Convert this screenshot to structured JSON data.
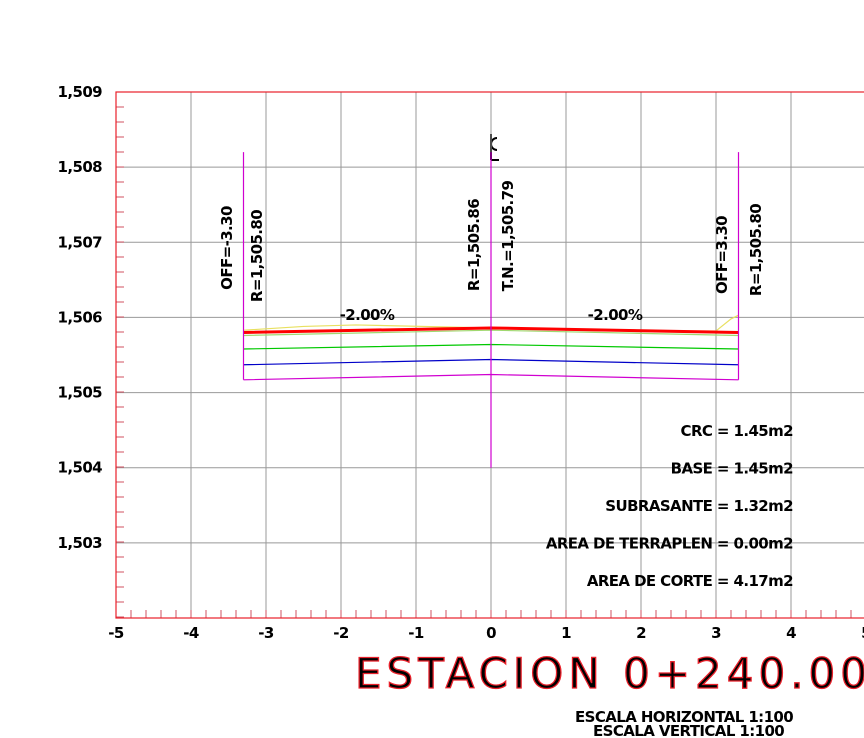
{
  "chart_data": {
    "type": "line",
    "title": "ESTACION 0+240.00",
    "subtitle": [
      "ESCALA HORIZONTAL 1:100",
      "ESCALA VERTICAL 1:100"
    ],
    "xlim": [
      -5,
      5
    ],
    "ylim": [
      1502,
      1509
    ],
    "xticks": [
      -5,
      -4,
      -3,
      -2,
      -1,
      0,
      1,
      2,
      3,
      4,
      5
    ],
    "yticks": [
      {
        "value": 1503,
        "label": "1,503"
      },
      {
        "value": 1504,
        "label": "1,504"
      },
      {
        "value": 1505,
        "label": "1,505"
      },
      {
        "value": 1506,
        "label": "1,506"
      },
      {
        "value": 1507,
        "label": "1,507"
      },
      {
        "value": 1508,
        "label": "1,508"
      },
      {
        "value": 1509,
        "label": "1,509"
      }
    ],
    "grid": true,
    "frame_color": "#e8202a",
    "series": [
      {
        "color": "#e8e060",
        "x": [
          -3.3,
          -2.5,
          -1.8,
          0,
          1.5,
          3.0,
          3.2,
          3.3
        ],
        "values": [
          1505.83,
          1505.88,
          1505.9,
          1505.86,
          1505.82,
          1505.82,
          1505.98,
          1506.03
        ]
      },
      {
        "color": "#ff0000",
        "width": 3,
        "x": [
          -3.3,
          0,
          3.3
        ],
        "values": [
          1505.8,
          1505.86,
          1505.8
        ]
      },
      {
        "color": "#a0d870",
        "x": [
          -3.3,
          0,
          3.3
        ],
        "values": [
          1505.76,
          1505.83,
          1505.76
        ]
      },
      {
        "color": "#00c800",
        "x": [
          -3.3,
          0,
          3.3
        ],
        "values": [
          1505.58,
          1505.64,
          1505.58
        ]
      },
      {
        "color": "#0000c8",
        "x": [
          -3.3,
          0,
          3.3
        ],
        "values": [
          1505.37,
          1505.44,
          1505.37
        ]
      },
      {
        "color": "#d000d0",
        "x": [
          -3.3,
          0,
          3.3
        ],
        "values": [
          1505.17,
          1505.24,
          1505.17
        ]
      },
      {
        "color": "#d000d0",
        "x": [
          -3.3,
          -3.3
        ],
        "values": [
          1505.17,
          1508.2
        ]
      },
      {
        "color": "#d000d0",
        "x": [
          0,
          0
        ],
        "values": [
          1504.0,
          1508.2
        ]
      },
      {
        "color": "#d000d0",
        "x": [
          3.3,
          3.3
        ],
        "values": [
          1505.17,
          1508.2
        ]
      }
    ],
    "annotations": [
      "OFF=-3.30",
      "R=1,505.80",
      "R=1,505.86",
      "T.N.=1,505.79",
      "OFF=3.30",
      "R=1,505.80",
      "-2.00%",
      "-2.00%"
    ],
    "areas": [
      "CRC = 1.45m2",
      "BASE = 1.45m2",
      "SUBRASANTE = 1.32m2",
      "AREA DE TERRAPLEN = 0.00m2",
      "AREA DE CORTE = 4.17m2"
    ]
  }
}
